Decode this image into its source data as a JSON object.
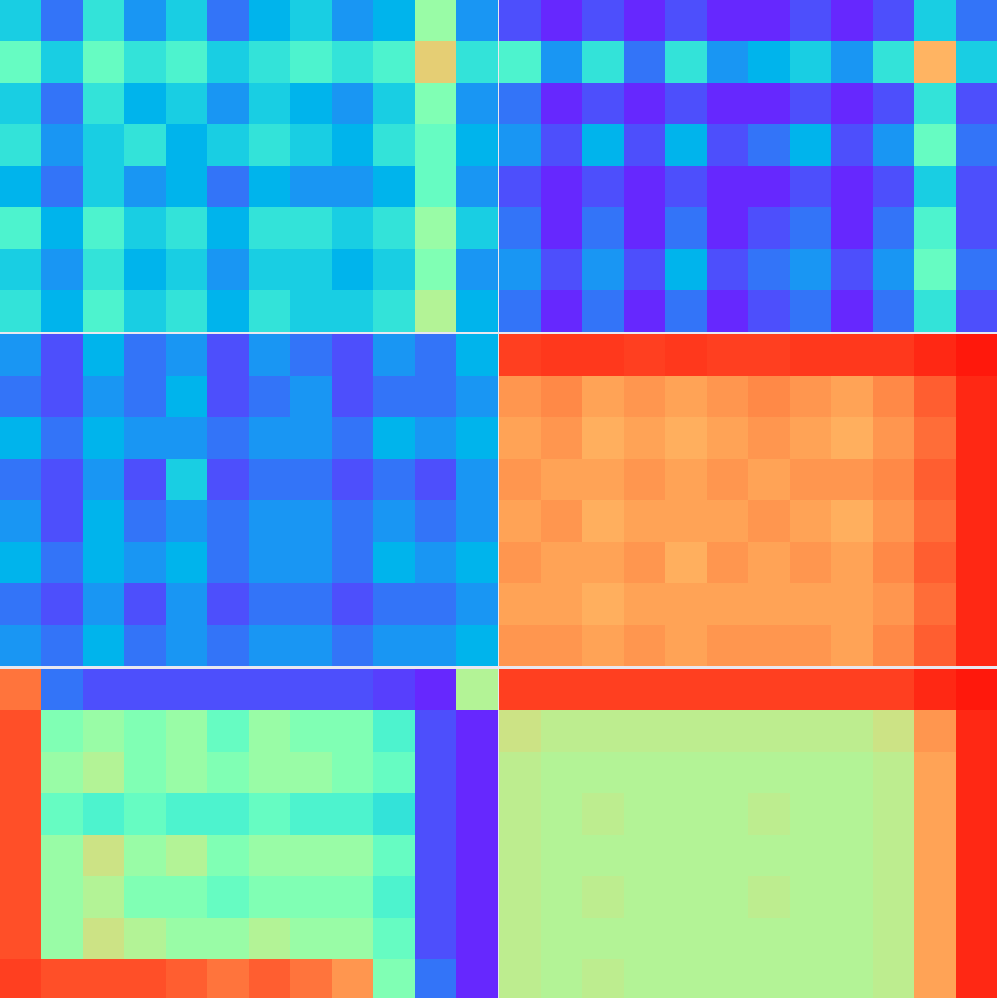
{
  "chart_data": [
    {
      "type": "heatmap",
      "tick_labels": false,
      "zlim": [
        0,
        1
      ],
      "cells": [
        [
          0.3,
          0.15,
          0.35,
          0.2,
          0.3,
          0.15,
          0.25,
          0.3,
          0.2,
          0.25,
          0.55,
          0.2
        ],
        [
          0.45,
          0.3,
          0.45,
          0.35,
          0.4,
          0.3,
          0.35,
          0.4,
          0.35,
          0.4,
          0.7,
          0.35
        ],
        [
          0.3,
          0.15,
          0.35,
          0.25,
          0.3,
          0.2,
          0.3,
          0.25,
          0.2,
          0.3,
          0.5,
          0.2
        ],
        [
          0.35,
          0.2,
          0.3,
          0.35,
          0.25,
          0.3,
          0.35,
          0.3,
          0.25,
          0.35,
          0.45,
          0.25
        ],
        [
          0.25,
          0.15,
          0.3,
          0.2,
          0.25,
          0.15,
          0.25,
          0.2,
          0.2,
          0.25,
          0.45,
          0.2
        ],
        [
          0.4,
          0.25,
          0.4,
          0.3,
          0.35,
          0.25,
          0.35,
          0.35,
          0.3,
          0.35,
          0.55,
          0.3
        ],
        [
          0.3,
          0.2,
          0.35,
          0.25,
          0.3,
          0.2,
          0.3,
          0.3,
          0.25,
          0.3,
          0.5,
          0.2
        ],
        [
          0.35,
          0.25,
          0.4,
          0.3,
          0.35,
          0.25,
          0.35,
          0.3,
          0.3,
          0.35,
          0.6,
          0.25
        ]
      ]
    },
    {
      "type": "heatmap",
      "tick_labels": false,
      "zlim": [
        0,
        1
      ],
      "cells": [
        [
          0.1,
          0.05,
          0.1,
          0.05,
          0.1,
          0.05,
          0.05,
          0.1,
          0.05,
          0.1,
          0.3,
          0.15
        ],
        [
          0.4,
          0.2,
          0.35,
          0.15,
          0.35,
          0.2,
          0.25,
          0.3,
          0.2,
          0.35,
          0.75,
          0.3
        ],
        [
          0.15,
          0.05,
          0.1,
          0.05,
          0.1,
          0.05,
          0.05,
          0.1,
          0.05,
          0.1,
          0.35,
          0.1
        ],
        [
          0.2,
          0.1,
          0.25,
          0.1,
          0.25,
          0.1,
          0.15,
          0.25,
          0.1,
          0.2,
          0.45,
          0.15
        ],
        [
          0.1,
          0.05,
          0.1,
          0.05,
          0.1,
          0.05,
          0.05,
          0.1,
          0.05,
          0.1,
          0.3,
          0.1
        ],
        [
          0.15,
          0.05,
          0.15,
          0.05,
          0.15,
          0.05,
          0.1,
          0.15,
          0.05,
          0.15,
          0.4,
          0.1
        ],
        [
          0.2,
          0.1,
          0.2,
          0.1,
          0.25,
          0.1,
          0.15,
          0.2,
          0.1,
          0.2,
          0.45,
          0.15
        ],
        [
          0.15,
          0.05,
          0.15,
          0.05,
          0.15,
          0.05,
          0.1,
          0.15,
          0.05,
          0.15,
          0.35,
          0.1
        ]
      ]
    },
    {
      "type": "heatmap",
      "tick_labels": false,
      "zlim": [
        0,
        1
      ],
      "cells": [
        [
          0.2,
          0.1,
          0.25,
          0.15,
          0.2,
          0.1,
          0.2,
          0.15,
          0.1,
          0.2,
          0.15,
          0.25
        ],
        [
          0.15,
          0.1,
          0.2,
          0.15,
          0.25,
          0.1,
          0.15,
          0.2,
          0.1,
          0.15,
          0.15,
          0.2
        ],
        [
          0.25,
          0.15,
          0.25,
          0.2,
          0.2,
          0.15,
          0.2,
          0.2,
          0.15,
          0.25,
          0.2,
          0.25
        ],
        [
          0.15,
          0.1,
          0.2,
          0.1,
          0.3,
          0.1,
          0.15,
          0.15,
          0.1,
          0.15,
          0.1,
          0.2
        ],
        [
          0.2,
          0.1,
          0.25,
          0.15,
          0.2,
          0.15,
          0.2,
          0.2,
          0.15,
          0.2,
          0.15,
          0.2
        ],
        [
          0.25,
          0.15,
          0.25,
          0.2,
          0.25,
          0.15,
          0.2,
          0.2,
          0.15,
          0.25,
          0.2,
          0.25
        ],
        [
          0.15,
          0.1,
          0.2,
          0.1,
          0.2,
          0.1,
          0.15,
          0.15,
          0.1,
          0.15,
          0.15,
          0.2
        ],
        [
          0.2,
          0.15,
          0.25,
          0.15,
          0.2,
          0.15,
          0.2,
          0.2,
          0.15,
          0.2,
          0.2,
          0.25
        ]
      ]
    },
    {
      "type": "heatmap",
      "tick_labels": false,
      "zlim": [
        0,
        1
      ],
      "cells": [
        [
          0.92,
          0.93,
          0.93,
          0.92,
          0.93,
          0.92,
          0.92,
          0.93,
          0.93,
          0.93,
          0.95,
          0.97
        ],
        [
          0.8,
          0.82,
          0.78,
          0.8,
          0.78,
          0.8,
          0.82,
          0.8,
          0.78,
          0.82,
          0.88,
          0.95
        ],
        [
          0.78,
          0.8,
          0.76,
          0.78,
          0.76,
          0.78,
          0.8,
          0.78,
          0.76,
          0.8,
          0.86,
          0.95
        ],
        [
          0.8,
          0.78,
          0.78,
          0.8,
          0.78,
          0.8,
          0.78,
          0.8,
          0.8,
          0.82,
          0.88,
          0.95
        ],
        [
          0.78,
          0.8,
          0.76,
          0.78,
          0.78,
          0.78,
          0.8,
          0.78,
          0.76,
          0.8,
          0.86,
          0.95
        ],
        [
          0.8,
          0.78,
          0.78,
          0.8,
          0.76,
          0.8,
          0.78,
          0.8,
          0.78,
          0.82,
          0.88,
          0.95
        ],
        [
          0.78,
          0.78,
          0.76,
          0.78,
          0.78,
          0.78,
          0.78,
          0.78,
          0.78,
          0.8,
          0.86,
          0.95
        ],
        [
          0.8,
          0.8,
          0.78,
          0.8,
          0.78,
          0.8,
          0.8,
          0.8,
          0.78,
          0.82,
          0.88,
          0.95
        ]
      ]
    },
    {
      "type": "heatmap",
      "tick_labels": false,
      "zlim": [
        0,
        1
      ],
      "cells": [
        [
          0.85,
          0.15,
          0.1,
          0.1,
          0.1,
          0.1,
          0.1,
          0.1,
          0.1,
          0.08,
          0.05,
          0.6
        ],
        [
          0.9,
          0.5,
          0.55,
          0.5,
          0.55,
          0.45,
          0.55,
          0.5,
          0.5,
          0.4,
          0.1,
          0.05
        ],
        [
          0.9,
          0.55,
          0.6,
          0.5,
          0.55,
          0.5,
          0.55,
          0.55,
          0.5,
          0.45,
          0.1,
          0.05
        ],
        [
          0.9,
          0.45,
          0.4,
          0.45,
          0.4,
          0.4,
          0.45,
          0.4,
          0.4,
          0.35,
          0.1,
          0.05
        ],
        [
          0.9,
          0.55,
          0.65,
          0.55,
          0.6,
          0.5,
          0.55,
          0.55,
          0.55,
          0.45,
          0.1,
          0.05
        ],
        [
          0.9,
          0.55,
          0.6,
          0.5,
          0.5,
          0.45,
          0.5,
          0.5,
          0.5,
          0.4,
          0.1,
          0.05
        ],
        [
          0.9,
          0.55,
          0.65,
          0.6,
          0.55,
          0.55,
          0.6,
          0.55,
          0.55,
          0.45,
          0.1,
          0.05
        ],
        [
          0.92,
          0.9,
          0.9,
          0.9,
          0.88,
          0.85,
          0.88,
          0.85,
          0.8,
          0.5,
          0.15,
          0.05
        ]
      ]
    },
    {
      "type": "heatmap",
      "tick_labels": false,
      "zlim": [
        0,
        1
      ],
      "cells": [
        [
          0.92,
          0.92,
          0.92,
          0.92,
          0.92,
          0.92,
          0.92,
          0.92,
          0.92,
          0.92,
          0.95,
          0.97
        ],
        [
          0.65,
          0.62,
          0.62,
          0.62,
          0.62,
          0.62,
          0.62,
          0.62,
          0.62,
          0.65,
          0.8,
          0.95
        ],
        [
          0.62,
          0.6,
          0.6,
          0.6,
          0.6,
          0.6,
          0.6,
          0.6,
          0.6,
          0.62,
          0.78,
          0.95
        ],
        [
          0.62,
          0.6,
          0.62,
          0.6,
          0.6,
          0.6,
          0.62,
          0.6,
          0.6,
          0.62,
          0.78,
          0.95
        ],
        [
          0.62,
          0.6,
          0.6,
          0.6,
          0.6,
          0.6,
          0.6,
          0.6,
          0.6,
          0.62,
          0.78,
          0.95
        ],
        [
          0.62,
          0.6,
          0.62,
          0.6,
          0.6,
          0.6,
          0.62,
          0.6,
          0.6,
          0.62,
          0.78,
          0.95
        ],
        [
          0.62,
          0.6,
          0.6,
          0.6,
          0.6,
          0.6,
          0.6,
          0.6,
          0.6,
          0.62,
          0.78,
          0.95
        ],
        [
          0.62,
          0.6,
          0.62,
          0.6,
          0.6,
          0.6,
          0.6,
          0.6,
          0.6,
          0.62,
          0.78,
          0.95
        ]
      ]
    }
  ]
}
